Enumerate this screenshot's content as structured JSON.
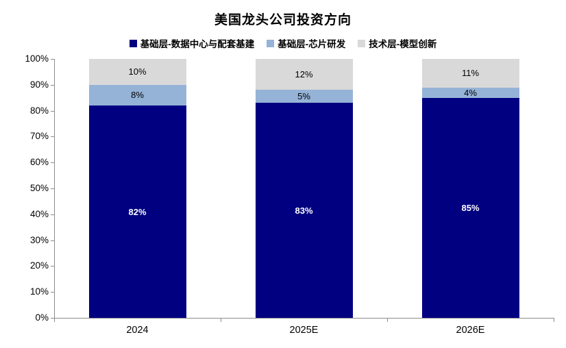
{
  "chart_data": {
    "type": "bar",
    "stacked": true,
    "title": "美国龙头公司投资方向",
    "categories": [
      "2024",
      "2025E",
      "2026E"
    ],
    "series": [
      {
        "name": "基础层-数据中心与配套基建",
        "color": "#000080",
        "label_color": "#FFFFFF",
        "label_bold": true,
        "values": [
          82,
          83,
          85
        ]
      },
      {
        "name": "基础层-芯片研发",
        "color": "#95B3D7",
        "label_color": "#000000",
        "label_bold": false,
        "values": [
          8,
          5,
          4
        ]
      },
      {
        "name": "技术层-模型创新",
        "color": "#D9D9D9",
        "label_color": "#000000",
        "label_bold": false,
        "values": [
          10,
          12,
          11
        ]
      }
    ],
    "ylim": [
      0,
      100
    ],
    "ytick_step": 10,
    "ytick_suffix": "%",
    "value_suffix": "%",
    "legend_position": "top",
    "grid": false,
    "axis_color": "#8C8C8C",
    "background": "#FFFFFF"
  }
}
